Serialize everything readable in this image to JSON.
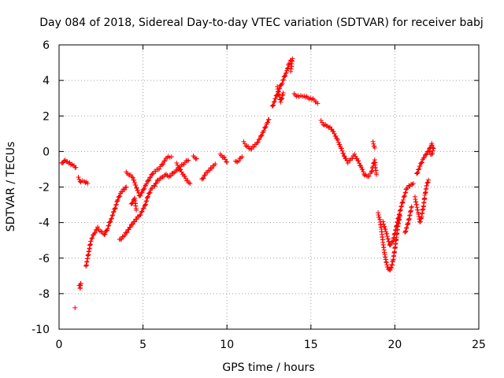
{
  "chart_data": {
    "type": "scatter",
    "title": "Day 084 of 2018, Sidereal Day-to-day VTEC variation (SDTVAR) for receiver babj",
    "xlabel": "GPS time / hours",
    "ylabel": "SDTVAR / TECUs",
    "xlim": [
      0,
      25
    ],
    "ylim": [
      -10,
      6
    ],
    "x_ticks": [
      0,
      5,
      10,
      15,
      20,
      25
    ],
    "y_ticks": [
      -10,
      -8,
      -6,
      -4,
      -2,
      0,
      2,
      4,
      6
    ],
    "x_tick_labels": [
      "0",
      "5",
      "10",
      "15",
      "20",
      "25"
    ],
    "y_tick_labels": [
      "-10",
      "-8",
      "-6",
      "-4",
      "-2",
      "0",
      "2",
      "4",
      "6"
    ],
    "grid": true,
    "marker": "+",
    "color": "#ff0000",
    "series": [
      {
        "name": "SDTVAR",
        "segments": [
          [
            [
              0.15,
              -0.7
            ],
            [
              0.3,
              -0.5
            ],
            [
              0.5,
              -0.6
            ],
            [
              0.7,
              -0.7
            ],
            [
              0.9,
              -0.8
            ],
            [
              1.0,
              -0.9
            ]
          ],
          [
            [
              1.15,
              -1.5
            ],
            [
              1.3,
              -1.7
            ],
            [
              1.5,
              -1.7
            ],
            [
              1.7,
              -1.8
            ]
          ],
          [
            [
              0.95,
              -8.8
            ]
          ],
          [
            [
              1.2,
              -7.6
            ],
            [
              1.3,
              -7.4
            ],
            [
              1.25,
              -7.7
            ]
          ],
          [
            [
              1.6,
              -6.5
            ],
            [
              1.7,
              -6.0
            ],
            [
              1.8,
              -5.5
            ],
            [
              1.9,
              -5.0
            ],
            [
              2.1,
              -4.6
            ],
            [
              2.3,
              -4.3
            ],
            [
              2.5,
              -4.5
            ],
            [
              2.7,
              -4.7
            ],
            [
              2.9,
              -4.3
            ],
            [
              3.1,
              -3.8
            ],
            [
              3.3,
              -3.3
            ],
            [
              3.5,
              -2.7
            ],
            [
              3.7,
              -2.3
            ],
            [
              3.9,
              -2.1
            ],
            [
              4.0,
              -2.0
            ]
          ],
          [
            [
              3.6,
              -5.0
            ],
            [
              3.9,
              -4.7
            ],
            [
              4.2,
              -4.3
            ],
            [
              4.5,
              -3.9
            ],
            [
              4.8,
              -3.6
            ],
            [
              5.1,
              -3.1
            ],
            [
              5.3,
              -2.5
            ],
            [
              5.5,
              -2.1
            ],
            [
              5.7,
              -1.9
            ],
            [
              5.9,
              -1.6
            ],
            [
              6.1,
              -1.5
            ],
            [
              6.3,
              -1.3
            ],
            [
              6.6,
              -1.4
            ],
            [
              6.9,
              -1.1
            ],
            [
              7.1,
              -1.0
            ],
            [
              7.3,
              -0.8
            ],
            [
              7.5,
              -0.6
            ],
            [
              7.7,
              -0.5
            ]
          ],
          [
            [
              4.0,
              -1.2
            ],
            [
              4.2,
              -1.3
            ],
            [
              4.4,
              -1.5
            ],
            [
              4.6,
              -2.0
            ],
            [
              4.8,
              -2.5
            ],
            [
              5.0,
              -2.2
            ],
            [
              5.2,
              -1.8
            ],
            [
              5.4,
              -1.5
            ],
            [
              5.6,
              -1.2
            ],
            [
              5.9,
              -1.0
            ],
            [
              6.1,
              -0.8
            ],
            [
              6.3,
              -0.5
            ],
            [
              6.5,
              -0.3
            ],
            [
              6.7,
              -0.3
            ]
          ],
          [
            [
              4.3,
              -3.0
            ],
            [
              4.5,
              -2.6
            ],
            [
              4.6,
              -3.3
            ]
          ],
          [
            [
              7.0,
              -0.7
            ],
            [
              7.2,
              -1.0
            ],
            [
              7.4,
              -1.3
            ],
            [
              7.6,
              -1.6
            ],
            [
              7.8,
              -1.8
            ]
          ],
          [
            [
              8.0,
              -0.3
            ],
            [
              8.2,
              -0.4
            ]
          ],
          [
            [
              8.5,
              -1.6
            ],
            [
              8.7,
              -1.3
            ],
            [
              8.9,
              -1.1
            ],
            [
              9.1,
              -0.9
            ],
            [
              9.3,
              -0.7
            ]
          ],
          [
            [
              9.6,
              -0.2
            ],
            [
              9.8,
              -0.3
            ],
            [
              10.0,
              -0.6
            ]
          ],
          [
            [
              10.5,
              -0.6
            ],
            [
              10.7,
              -0.5
            ],
            [
              10.9,
              -0.3
            ]
          ],
          [
            [
              11.0,
              0.5
            ],
            [
              11.2,
              0.3
            ],
            [
              11.4,
              0.1
            ],
            [
              11.6,
              0.3
            ],
            [
              11.8,
              0.5
            ],
            [
              12.0,
              0.8
            ],
            [
              12.2,
              1.2
            ],
            [
              12.4,
              1.6
            ],
            [
              12.5,
              1.8
            ]
          ],
          [
            [
              12.7,
              2.5
            ],
            [
              12.9,
              3.0
            ],
            [
              13.1,
              3.5
            ],
            [
              13.3,
              3.9
            ],
            [
              13.5,
              4.4
            ],
            [
              13.6,
              4.6
            ],
            [
              13.7,
              5.0
            ],
            [
              13.9,
              5.2
            ],
            [
              13.8,
              4.5
            ]
          ],
          [
            [
              13.0,
              3.6
            ],
            [
              13.2,
              2.8
            ],
            [
              13.35,
              3.3
            ]
          ],
          [
            [
              14.0,
              3.2
            ],
            [
              14.3,
              3.1
            ],
            [
              14.6,
              3.1
            ],
            [
              14.9,
              3.0
            ],
            [
              15.2,
              2.9
            ],
            [
              15.4,
              2.7
            ]
          ],
          [
            [
              15.6,
              1.7
            ],
            [
              15.8,
              1.5
            ],
            [
              16.0,
              1.4
            ],
            [
              16.2,
              1.3
            ],
            [
              16.4,
              1.0
            ],
            [
              16.6,
              0.6
            ],
            [
              16.8,
              0.2
            ],
            [
              17.0,
              -0.3
            ],
            [
              17.2,
              -0.6
            ],
            [
              17.4,
              -0.4
            ],
            [
              17.6,
              -0.2
            ],
            [
              17.8,
              -0.5
            ],
            [
              18.0,
              -0.9
            ],
            [
              18.2,
              -1.3
            ],
            [
              18.4,
              -1.4
            ],
            [
              18.6,
              -1.2
            ],
            [
              18.7,
              -0.8
            ],
            [
              18.8,
              -0.5
            ],
            [
              18.9,
              -1.3
            ]
          ],
          [
            [
              18.7,
              0.5
            ],
            [
              18.8,
              0.2
            ]
          ],
          [
            [
              19.0,
              -3.5
            ],
            [
              19.1,
              -3.8
            ],
            [
              19.2,
              -4.4
            ],
            [
              19.3,
              -5.2
            ],
            [
              19.4,
              -5.8
            ],
            [
              19.5,
              -6.3
            ],
            [
              19.6,
              -6.6
            ],
            [
              19.7,
              -6.7
            ],
            [
              19.8,
              -6.5
            ],
            [
              19.9,
              -6.1
            ],
            [
              20.0,
              -5.5
            ],
            [
              20.1,
              -4.8
            ],
            [
              20.2,
              -4.1
            ],
            [
              20.3,
              -3.6
            ]
          ],
          [
            [
              19.3,
              -4.0
            ],
            [
              19.5,
              -4.6
            ],
            [
              19.7,
              -5.3
            ],
            [
              19.9,
              -5.0
            ],
            [
              20.1,
              -4.2
            ],
            [
              20.3,
              -3.4
            ],
            [
              20.5,
              -2.7
            ],
            [
              20.7,
              -2.1
            ],
            [
              20.9,
              -1.9
            ],
            [
              21.1,
              -1.8
            ]
          ],
          [
            [
              20.6,
              -4.6
            ],
            [
              20.8,
              -4.0
            ],
            [
              21.0,
              -3.1
            ]
          ],
          [
            [
              21.2,
              -2.6
            ],
            [
              21.4,
              -3.5
            ],
            [
              21.5,
              -4.0
            ],
            [
              21.6,
              -3.6
            ],
            [
              21.7,
              -3.1
            ],
            [
              21.8,
              -2.4
            ],
            [
              21.9,
              -1.9
            ],
            [
              22.0,
              -1.6
            ]
          ],
          [
            [
              21.3,
              -1.3
            ],
            [
              21.5,
              -0.8
            ],
            [
              21.7,
              -0.4
            ],
            [
              21.9,
              -0.1
            ],
            [
              22.1,
              0.2
            ],
            [
              22.2,
              0.4
            ],
            [
              22.3,
              0.2
            ],
            [
              22.2,
              -0.2
            ],
            [
              22.0,
              0.0
            ]
          ]
        ]
      }
    ]
  }
}
